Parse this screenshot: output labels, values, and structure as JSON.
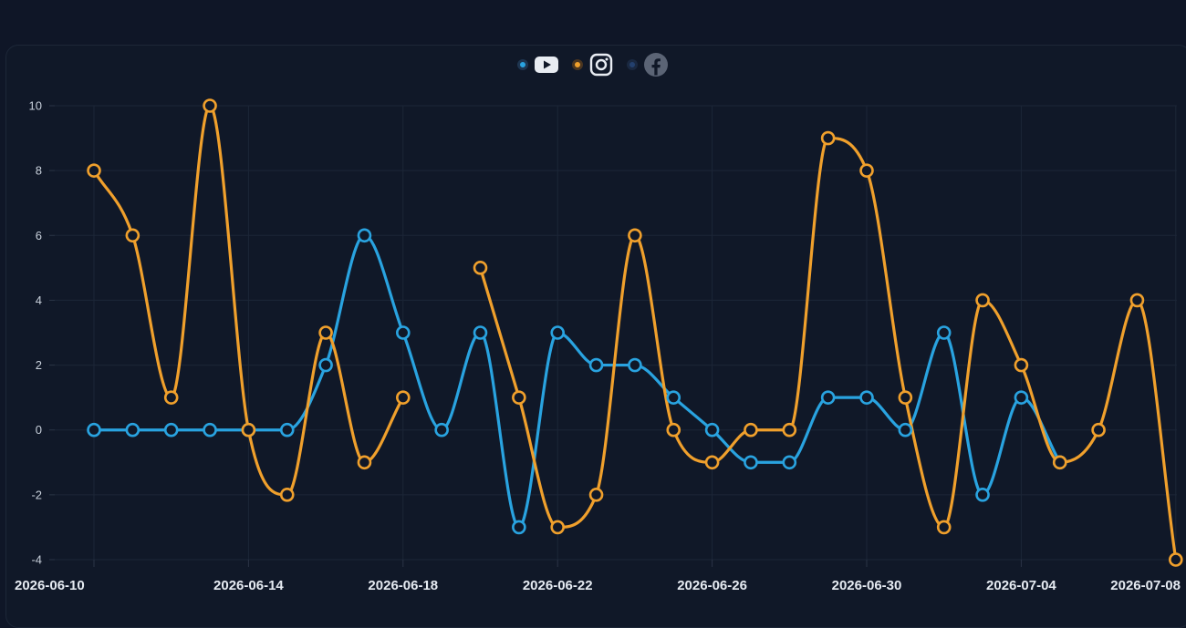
{
  "chart_data": {
    "type": "line",
    "title": "",
    "xlabel": "",
    "ylabel": "",
    "x": [
      "2026-06-10",
      "2026-06-11",
      "2026-06-12",
      "2026-06-13",
      "2026-06-14",
      "2026-06-15",
      "2026-06-16",
      "2026-06-17",
      "2026-06-18",
      "2026-06-19",
      "2026-06-20",
      "2026-06-21",
      "2026-06-22",
      "2026-06-23",
      "2026-06-24",
      "2026-06-25",
      "2026-06-26",
      "2026-06-27",
      "2026-06-28",
      "2026-06-29",
      "2026-06-30",
      "2026-07-01",
      "2026-07-02",
      "2026-07-03",
      "2026-07-04",
      "2026-07-05",
      "2026-07-06",
      "2026-07-07",
      "2026-07-08"
    ],
    "x_ticks": [
      "2026-06-10",
      "2026-06-14",
      "2026-06-18",
      "2026-06-22",
      "2026-06-26",
      "2026-06-30",
      "2026-07-04",
      "2026-07-08"
    ],
    "ylim": [
      -4,
      10
    ],
    "y_ticks": [
      -4,
      -2,
      0,
      2,
      4,
      6,
      8,
      10
    ],
    "grid": true,
    "legend_position": "top-center",
    "series": [
      {
        "key": "youtube",
        "color": "#29a3e0",
        "icon": "youtube-icon",
        "points": [
          [
            "2026-06-10",
            0
          ],
          [
            "2026-06-11",
            0
          ],
          [
            "2026-06-12",
            0
          ],
          [
            "2026-06-13",
            0
          ],
          [
            "2026-06-14",
            0
          ],
          [
            "2026-06-15",
            0
          ],
          [
            "2026-06-16",
            2
          ],
          [
            "2026-06-17",
            6
          ],
          [
            "2026-06-18",
            3
          ],
          [
            "2026-06-19",
            0
          ],
          [
            "2026-06-20",
            3
          ],
          [
            "2026-06-21",
            -3
          ],
          [
            "2026-06-22",
            3
          ],
          [
            "2026-06-23",
            2
          ],
          [
            "2026-06-24",
            2
          ],
          [
            "2026-06-25",
            1
          ],
          [
            "2026-06-26",
            0
          ],
          [
            "2026-06-27",
            -1
          ],
          [
            "2026-06-28",
            -1
          ],
          [
            "2026-06-29",
            1
          ],
          [
            "2026-06-30",
            1
          ],
          [
            "2026-07-01",
            0
          ],
          [
            "2026-07-02",
            3
          ],
          [
            "2026-07-03",
            -2
          ],
          [
            "2026-07-04",
            1
          ],
          [
            "2026-07-05",
            -1
          ]
        ]
      },
      {
        "key": "instagram",
        "color": "#f0a02c",
        "icon": "instagram-icon",
        "segments": [
          [
            [
              "2026-06-10",
              8
            ],
            [
              "2026-06-11",
              6
            ],
            [
              "2026-06-12",
              1
            ],
            [
              "2026-06-13",
              10
            ],
            [
              "2026-06-14",
              0
            ],
            [
              "2026-06-15",
              -2
            ],
            [
              "2026-06-16",
              3
            ],
            [
              "2026-06-17",
              -1
            ],
            [
              "2026-06-18",
              1
            ]
          ],
          [
            [
              "2026-06-20",
              5
            ],
            [
              "2026-06-21",
              1
            ],
            [
              "2026-06-22",
              -3
            ],
            [
              "2026-06-23",
              -2
            ],
            [
              "2026-06-24",
              6
            ],
            [
              "2026-06-25",
              0
            ],
            [
              "2026-06-26",
              -1
            ],
            [
              "2026-06-27",
              0
            ],
            [
              "2026-06-28",
              0
            ],
            [
              "2026-06-29",
              9
            ],
            [
              "2026-06-30",
              8
            ],
            [
              "2026-07-01",
              1
            ],
            [
              "2026-07-02",
              -3
            ],
            [
              "2026-07-03",
              4
            ],
            [
              "2026-07-04",
              2
            ],
            [
              "2026-07-05",
              -1
            ],
            [
              "2026-07-06",
              0
            ],
            [
              "2026-07-07",
              4
            ],
            [
              "2026-07-08",
              -4
            ]
          ]
        ]
      },
      {
        "key": "facebook",
        "color": "#23406e",
        "icon": "facebook-icon",
        "points": []
      }
    ]
  }
}
